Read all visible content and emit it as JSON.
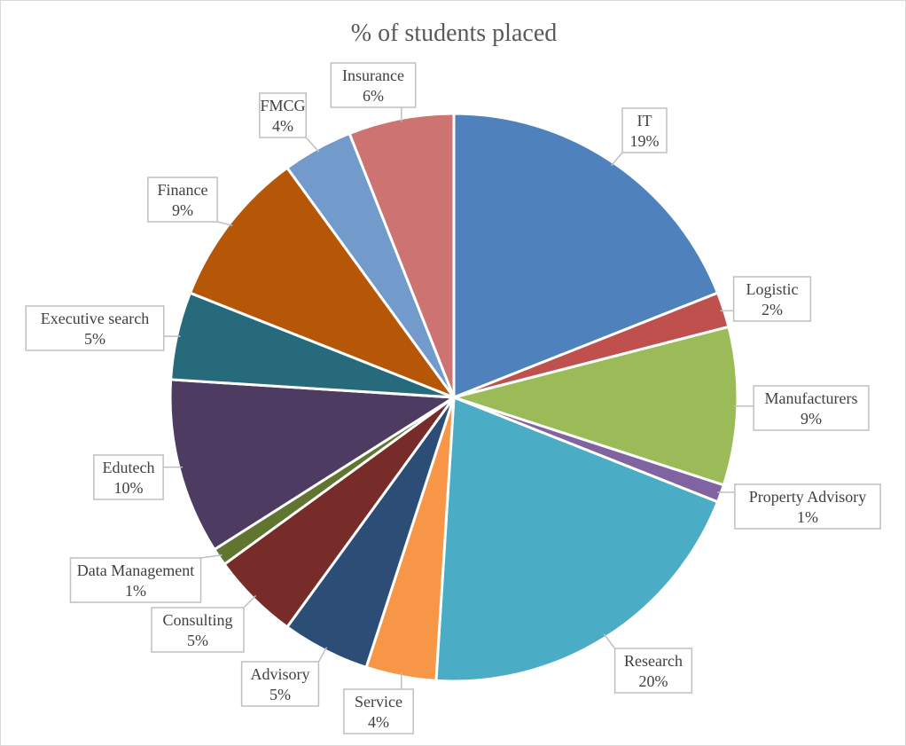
{
  "chart_data": {
    "type": "pie",
    "title": "% of students placed",
    "slices": [
      {
        "label": "IT",
        "value": 19,
        "display": "19%",
        "color": "#4F81BD"
      },
      {
        "label": "Logistic",
        "value": 2,
        "display": "2%",
        "color": "#C0504D"
      },
      {
        "label": "Manufacturers",
        "value": 9,
        "display": "9%",
        "color": "#9BBB59"
      },
      {
        "label": "Property Advisory",
        "value": 1,
        "display": "1%",
        "color": "#8064A2"
      },
      {
        "label": "Research",
        "value": 20,
        "display": "20%",
        "color": "#4BACC6"
      },
      {
        "label": "Service",
        "value": 4,
        "display": "4%",
        "color": "#F79646"
      },
      {
        "label": "Advisory",
        "value": 5,
        "display": "5%",
        "color": "#2C4D75"
      },
      {
        "label": "Consulting",
        "value": 5,
        "display": "5%",
        "color": "#772C2A"
      },
      {
        "label": "Data Management",
        "value": 1,
        "display": "1%",
        "color": "#5F7530"
      },
      {
        "label": "Edutech",
        "value": 10,
        "display": "10%",
        "color": "#4D3B62"
      },
      {
        "label": "Executive search",
        "value": 5,
        "display": "5%",
        "color": "#276A7C"
      },
      {
        "label": "Finance",
        "value": 9,
        "display": "9%",
        "color": "#B65708"
      },
      {
        "label": "FMCG",
        "value": 4,
        "display": "4%",
        "color": "#729ACA"
      },
      {
        "label": "Insurance",
        "value": 6,
        "display": "6%",
        "color": "#CD7371"
      }
    ]
  }
}
